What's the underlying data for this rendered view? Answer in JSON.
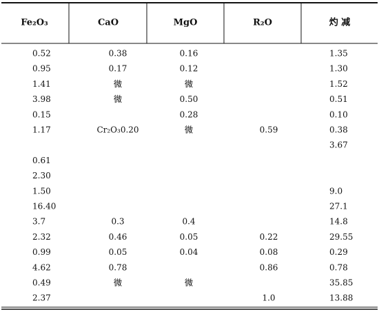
{
  "table": {
    "headers": [
      "Fe₂O₃",
      "CaO",
      "MgO",
      "R₂O",
      "灼 减"
    ],
    "rows": [
      [
        "0.52",
        "0.38",
        "0.16",
        null,
        "1.35"
      ],
      [
        "0.95",
        "0.17",
        "0.12",
        null,
        "1.30"
      ],
      [
        "1.41",
        "微",
        "微",
        null,
        "1.52"
      ],
      [
        "3.98",
        "微",
        "0.50",
        null,
        "0.51"
      ],
      [
        "0.15",
        null,
        "0.28",
        null,
        "0.10"
      ],
      [
        "1.17",
        "Cr₂O₃0.20",
        "微",
        "0.59",
        "0.38"
      ],
      [
        null,
        null,
        null,
        null,
        "3.67"
      ],
      [
        "0.61",
        null,
        null,
        null,
        null
      ],
      [
        "2.30",
        null,
        null,
        null,
        null
      ],
      [
        "1.50",
        null,
        null,
        null,
        "9.0"
      ],
      [
        "16.40",
        null,
        null,
        null,
        "27.1"
      ],
      [
        "3.7",
        "0.3",
        "0.4",
        null,
        "14.8"
      ],
      [
        "2.32",
        "0.46",
        "0.05",
        "0.22",
        "29.55"
      ],
      [
        "0.99",
        "0.05",
        "0.04",
        "0.08",
        "0.29"
      ],
      [
        "4.62",
        "0.78",
        null,
        "0.86",
        "0.78"
      ],
      [
        "0.49",
        "微",
        "微",
        null,
        "35.85"
      ],
      [
        "2.37",
        null,
        null,
        "1.0",
        "13.88"
      ]
    ]
  }
}
